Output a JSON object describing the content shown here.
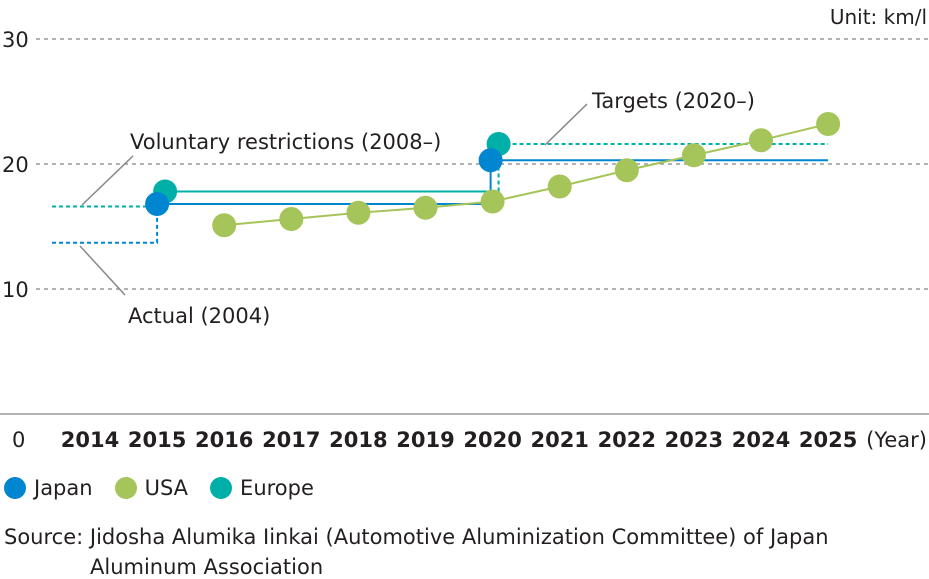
{
  "chart_data": {
    "type": "line",
    "unit_label": "Unit: km/l",
    "x_unit": "(Year)",
    "x": [
      2014,
      2015,
      2016,
      2017,
      2018,
      2019,
      2020,
      2021,
      2022,
      2023,
      2024,
      2025
    ],
    "x_zero_label": "0",
    "ylim": [
      0,
      30
    ],
    "yticks": [
      10,
      20,
      30
    ],
    "grid": true,
    "legend_placement": "bottom-left",
    "series": [
      {
        "name": "Japan",
        "color": "#0085d0",
        "points": [
          [
            2015,
            16.8
          ],
          [
            2020,
            20.3
          ]
        ]
      },
      {
        "name": "USA",
        "color": "#a5c45a",
        "points": [
          [
            2016,
            15.1
          ],
          [
            2017,
            15.6
          ],
          [
            2018,
            16.1
          ],
          [
            2019,
            16.5
          ],
          [
            2020,
            17.0
          ],
          [
            2021,
            18.2
          ],
          [
            2022,
            19.5
          ],
          [
            2023,
            20.7
          ],
          [
            2024,
            21.9
          ],
          [
            2025,
            23.2
          ]
        ]
      },
      {
        "name": "Europe",
        "color": "#00b0a8",
        "points": [
          [
            2015,
            17.8
          ],
          [
            2020,
            21.6
          ]
        ]
      }
    ],
    "reference_levels": {
      "japan_actual_2004": 13.7,
      "europe_voluntary_2008": 16.6
    },
    "annotations": {
      "voluntary": "Voluntary restrictions (2008–)",
      "actual": "Actual (2004)",
      "targets": "Targets (2020–)"
    }
  },
  "source": {
    "line1": "Source: Jidosha Alumika Iinkai (Automotive Aluminization Committee) of Japan",
    "line2": "Aluminum Association"
  }
}
